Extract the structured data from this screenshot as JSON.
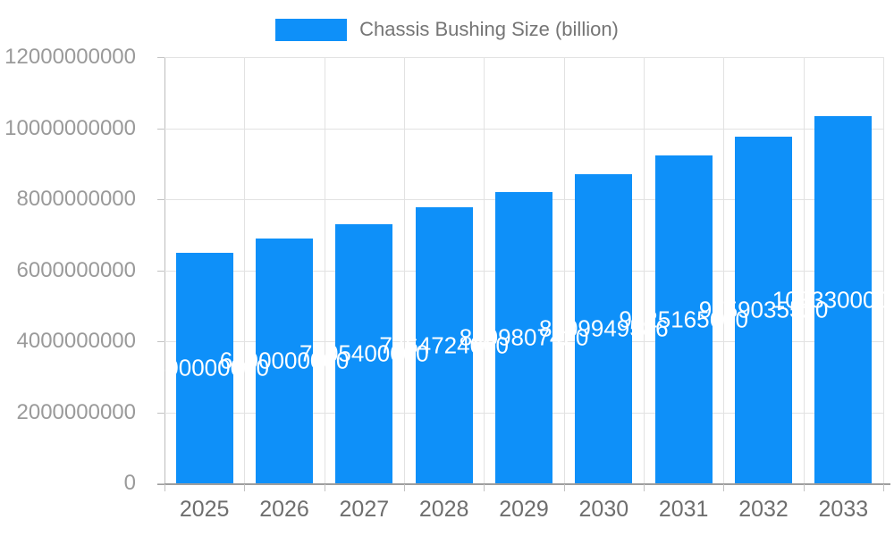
{
  "legend": {
    "label": "Chassis Bushing Size (billion)",
    "swatch_color": "#0e90f9"
  },
  "chart_data": {
    "type": "bar",
    "title": "Chassis Bushing Size (billion)",
    "categories": [
      "2025",
      "2026",
      "2027",
      "2028",
      "2029",
      "2030",
      "2031",
      "2032",
      "2033"
    ],
    "values": [
      6500000000,
      6890000000,
      7305400000,
      7764724000,
      8209807420,
      8709949586,
      9225165600,
      9759035520,
      10333000000
    ],
    "value_labels": [
      "6500000000",
      "6890000000",
      "7305400000",
      "7764724000",
      "8209807420",
      "8709949586",
      "9225165600",
      "9759035520",
      "10333000000"
    ],
    "xlabel": "",
    "ylabel": "",
    "ylim": [
      0,
      12000000000
    ],
    "y_ticks": [
      0,
      2000000000,
      4000000000,
      6000000000,
      8000000000,
      10000000000,
      12000000000
    ],
    "y_tick_labels": [
      "0",
      "2000000000",
      "4000000000",
      "6000000000",
      "8000000000",
      "10000000000",
      "12000000000"
    ],
    "grid": true,
    "legend_position": "top",
    "bar_color": "#0e90f9",
    "value_label_color": "#ffffff"
  }
}
